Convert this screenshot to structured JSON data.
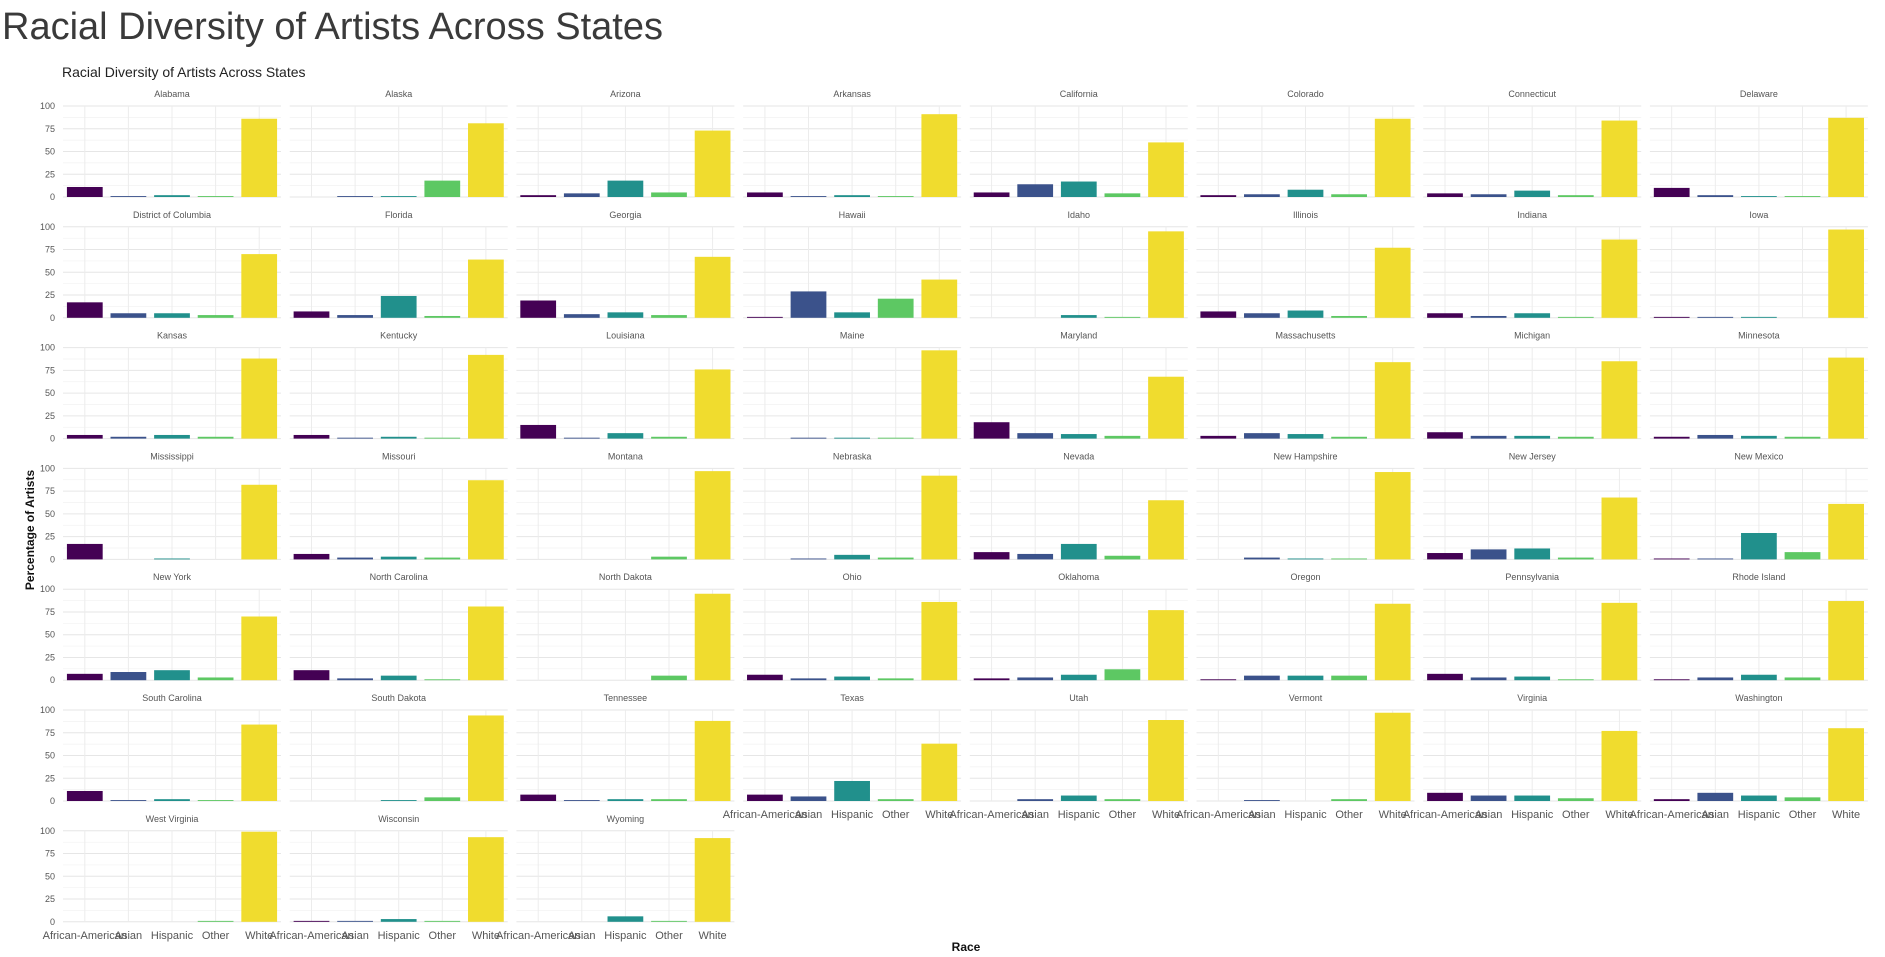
{
  "page": {
    "title": "Racial Diversity of Artists Across States"
  },
  "chart_data": {
    "type": "bar",
    "layout": "facet-grid",
    "title": "Racial Diversity of Artists Across States",
    "xlabel": "Race",
    "ylabel": "Percentage of Artists",
    "ylim": [
      0,
      100
    ],
    "yticks": [
      0,
      25,
      50,
      75,
      100
    ],
    "categories": [
      "African-American",
      "Asian",
      "Hispanic",
      "Other",
      "White"
    ],
    "colors": [
      "#440154",
      "#3b528b",
      "#21908c",
      "#5dc863",
      "#f0dc2e"
    ],
    "facets": [
      {
        "name": "Alabama",
        "values": [
          11,
          1,
          2,
          1,
          86
        ]
      },
      {
        "name": "Alaska",
        "values": [
          0,
          1,
          1,
          18,
          81
        ]
      },
      {
        "name": "Arizona",
        "values": [
          2,
          4,
          18,
          5,
          73
        ]
      },
      {
        "name": "Arkansas",
        "values": [
          5,
          1,
          2,
          1,
          91
        ]
      },
      {
        "name": "California",
        "values": [
          5,
          14,
          17,
          4,
          60
        ]
      },
      {
        "name": "Colorado",
        "values": [
          2,
          3,
          8,
          3,
          86
        ]
      },
      {
        "name": "Connecticut",
        "values": [
          4,
          3,
          7,
          2,
          84
        ]
      },
      {
        "name": "Delaware",
        "values": [
          10,
          2,
          1,
          1,
          87
        ]
      },
      {
        "name": "District of Columbia",
        "values": [
          17,
          5,
          5,
          3,
          70
        ]
      },
      {
        "name": "Florida",
        "values": [
          7,
          3,
          24,
          2,
          64
        ]
      },
      {
        "name": "Georgia",
        "values": [
          19,
          4,
          6,
          3,
          67
        ]
      },
      {
        "name": "Hawaii",
        "values": [
          1,
          29,
          6,
          21,
          42
        ]
      },
      {
        "name": "Idaho",
        "values": [
          0,
          0,
          3,
          1,
          95
        ]
      },
      {
        "name": "Illinois",
        "values": [
          7,
          5,
          8,
          2,
          77
        ]
      },
      {
        "name": "Indiana",
        "values": [
          5,
          2,
          5,
          1,
          86
        ]
      },
      {
        "name": "Iowa",
        "values": [
          1,
          1,
          1,
          0,
          97
        ]
      },
      {
        "name": "Kansas",
        "values": [
          4,
          2,
          4,
          2,
          88
        ]
      },
      {
        "name": "Kentucky",
        "values": [
          4,
          1,
          2,
          1,
          92
        ]
      },
      {
        "name": "Louisiana",
        "values": [
          15,
          1,
          6,
          2,
          76
        ]
      },
      {
        "name": "Maine",
        "values": [
          0,
          1,
          1,
          1,
          97
        ]
      },
      {
        "name": "Maryland",
        "values": [
          18,
          6,
          5,
          3,
          68
        ]
      },
      {
        "name": "Massachusetts",
        "values": [
          3,
          6,
          5,
          2,
          84
        ]
      },
      {
        "name": "Michigan",
        "values": [
          7,
          3,
          3,
          2,
          85
        ]
      },
      {
        "name": "Minnesota",
        "values": [
          2,
          4,
          3,
          2,
          89
        ]
      },
      {
        "name": "Mississippi",
        "values": [
          17,
          0,
          1,
          0,
          82
        ]
      },
      {
        "name": "Missouri",
        "values": [
          6,
          2,
          3,
          2,
          87
        ]
      },
      {
        "name": "Montana",
        "values": [
          0,
          0,
          0,
          3,
          97
        ]
      },
      {
        "name": "Nebraska",
        "values": [
          0,
          1,
          5,
          2,
          92
        ]
      },
      {
        "name": "Nevada",
        "values": [
          8,
          6,
          17,
          4,
          65
        ]
      },
      {
        "name": "New Hampshire",
        "values": [
          0,
          2,
          1,
          1,
          96
        ]
      },
      {
        "name": "New Jersey",
        "values": [
          7,
          11,
          12,
          2,
          68
        ]
      },
      {
        "name": "New Mexico",
        "values": [
          1,
          1,
          29,
          8,
          61
        ]
      },
      {
        "name": "New York",
        "values": [
          7,
          9,
          11,
          3,
          70
        ]
      },
      {
        "name": "North Carolina",
        "values": [
          11,
          2,
          5,
          1,
          81
        ]
      },
      {
        "name": "North Dakota",
        "values": [
          0,
          0,
          0,
          5,
          95
        ]
      },
      {
        "name": "Ohio",
        "values": [
          6,
          2,
          4,
          2,
          86
        ]
      },
      {
        "name": "Oklahoma",
        "values": [
          2,
          3,
          6,
          12,
          77
        ]
      },
      {
        "name": "Oregon",
        "values": [
          1,
          5,
          5,
          5,
          84
        ]
      },
      {
        "name": "Pennsylvania",
        "values": [
          7,
          3,
          4,
          1,
          85
        ]
      },
      {
        "name": "Rhode Island",
        "values": [
          1,
          3,
          6,
          3,
          87
        ]
      },
      {
        "name": "South Carolina",
        "values": [
          11,
          1,
          2,
          1,
          84
        ]
      },
      {
        "name": "South Dakota",
        "values": [
          0,
          0,
          1,
          4,
          94
        ]
      },
      {
        "name": "Tennessee",
        "values": [
          7,
          1,
          2,
          2,
          88
        ]
      },
      {
        "name": "Texas",
        "values": [
          7,
          5,
          22,
          2,
          63
        ]
      },
      {
        "name": "Utah",
        "values": [
          0,
          2,
          6,
          2,
          89
        ]
      },
      {
        "name": "Vermont",
        "values": [
          0,
          1,
          0,
          2,
          97
        ]
      },
      {
        "name": "Virginia",
        "values": [
          9,
          6,
          6,
          3,
          77
        ]
      },
      {
        "name": "Washington",
        "values": [
          2,
          9,
          6,
          4,
          80
        ]
      },
      {
        "name": "West Virginia",
        "values": [
          0,
          0,
          0,
          1,
          99
        ]
      },
      {
        "name": "Wisconsin",
        "values": [
          1,
          1,
          3,
          1,
          93
        ]
      },
      {
        "name": "Wyoming",
        "values": [
          0,
          0,
          6,
          1,
          92
        ]
      }
    ]
  }
}
